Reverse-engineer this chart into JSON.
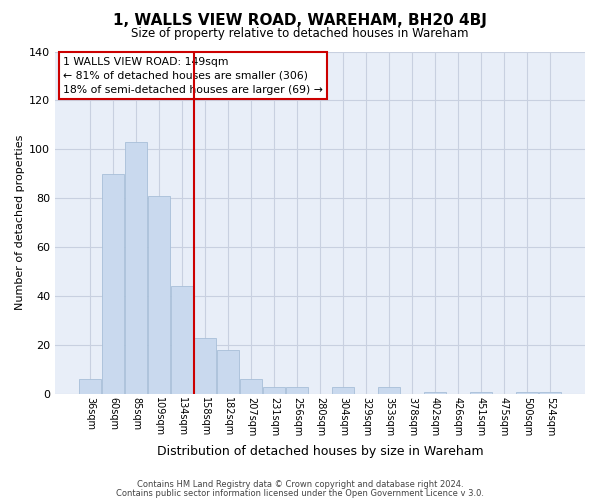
{
  "title": "1, WALLS VIEW ROAD, WAREHAM, BH20 4BJ",
  "subtitle": "Size of property relative to detached houses in Wareham",
  "xlabel": "Distribution of detached houses by size in Wareham",
  "ylabel": "Number of detached properties",
  "bar_labels": [
    "36sqm",
    "60sqm",
    "85sqm",
    "109sqm",
    "134sqm",
    "158sqm",
    "182sqm",
    "207sqm",
    "231sqm",
    "256sqm",
    "280sqm",
    "304sqm",
    "329sqm",
    "353sqm",
    "378sqm",
    "402sqm",
    "426sqm",
    "451sqm",
    "475sqm",
    "500sqm",
    "524sqm"
  ],
  "bar_values": [
    6,
    90,
    103,
    81,
    44,
    23,
    18,
    6,
    3,
    3,
    0,
    3,
    0,
    3,
    0,
    1,
    0,
    1,
    0,
    1,
    1
  ],
  "bar_color": "#c9d9ee",
  "bar_edge_color": "#a8bfd8",
  "vline_x": 4.5,
  "vline_color": "#cc0000",
  "annotation_text": "1 WALLS VIEW ROAD: 149sqm\n← 81% of detached houses are smaller (306)\n18% of semi-detached houses are larger (69) →",
  "annotation_box_color": "#ffffff",
  "annotation_box_edge": "#cc0000",
  "ylim": [
    0,
    140
  ],
  "yticks": [
    0,
    20,
    40,
    60,
    80,
    100,
    120,
    140
  ],
  "footer1": "Contains HM Land Registry data © Crown copyright and database right 2024.",
  "footer2": "Contains public sector information licensed under the Open Government Licence v 3.0.",
  "background_color": "#e8eef8",
  "grid_color": "#c8d0e0"
}
